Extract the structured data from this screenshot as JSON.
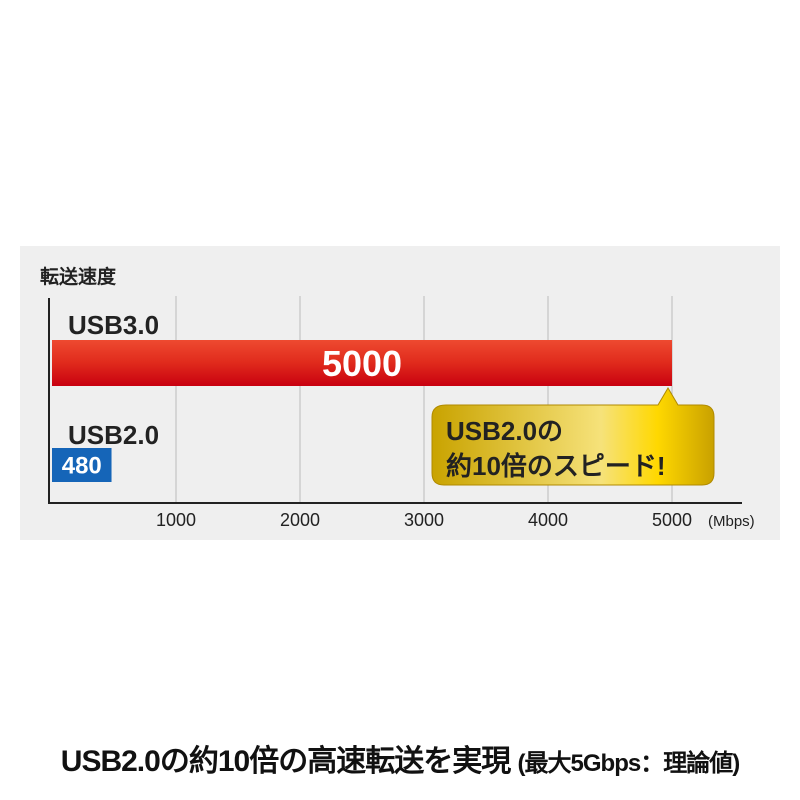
{
  "chart_data": {
    "type": "bar",
    "orientation": "horizontal",
    "title": "転送速度",
    "categories": [
      "USB3.0",
      "USB2.0"
    ],
    "values": [
      5000,
      480
    ],
    "bar_colors": [
      "#e0251b",
      "#1565b8"
    ],
    "xlim": [
      0,
      5000
    ],
    "xticks": [
      "1000",
      "2000",
      "3000",
      "4000",
      "5000"
    ],
    "xunit": "(Mbps)",
    "grid": true,
    "callout": {
      "line1": "USB2.0の",
      "line2": "約10倍のスピード!",
      "color": "#f2c200"
    }
  },
  "footer": {
    "main": "USB2.0の約10倍の高速転送を実現",
    "note": "(最大5Gbps：理論値)"
  }
}
